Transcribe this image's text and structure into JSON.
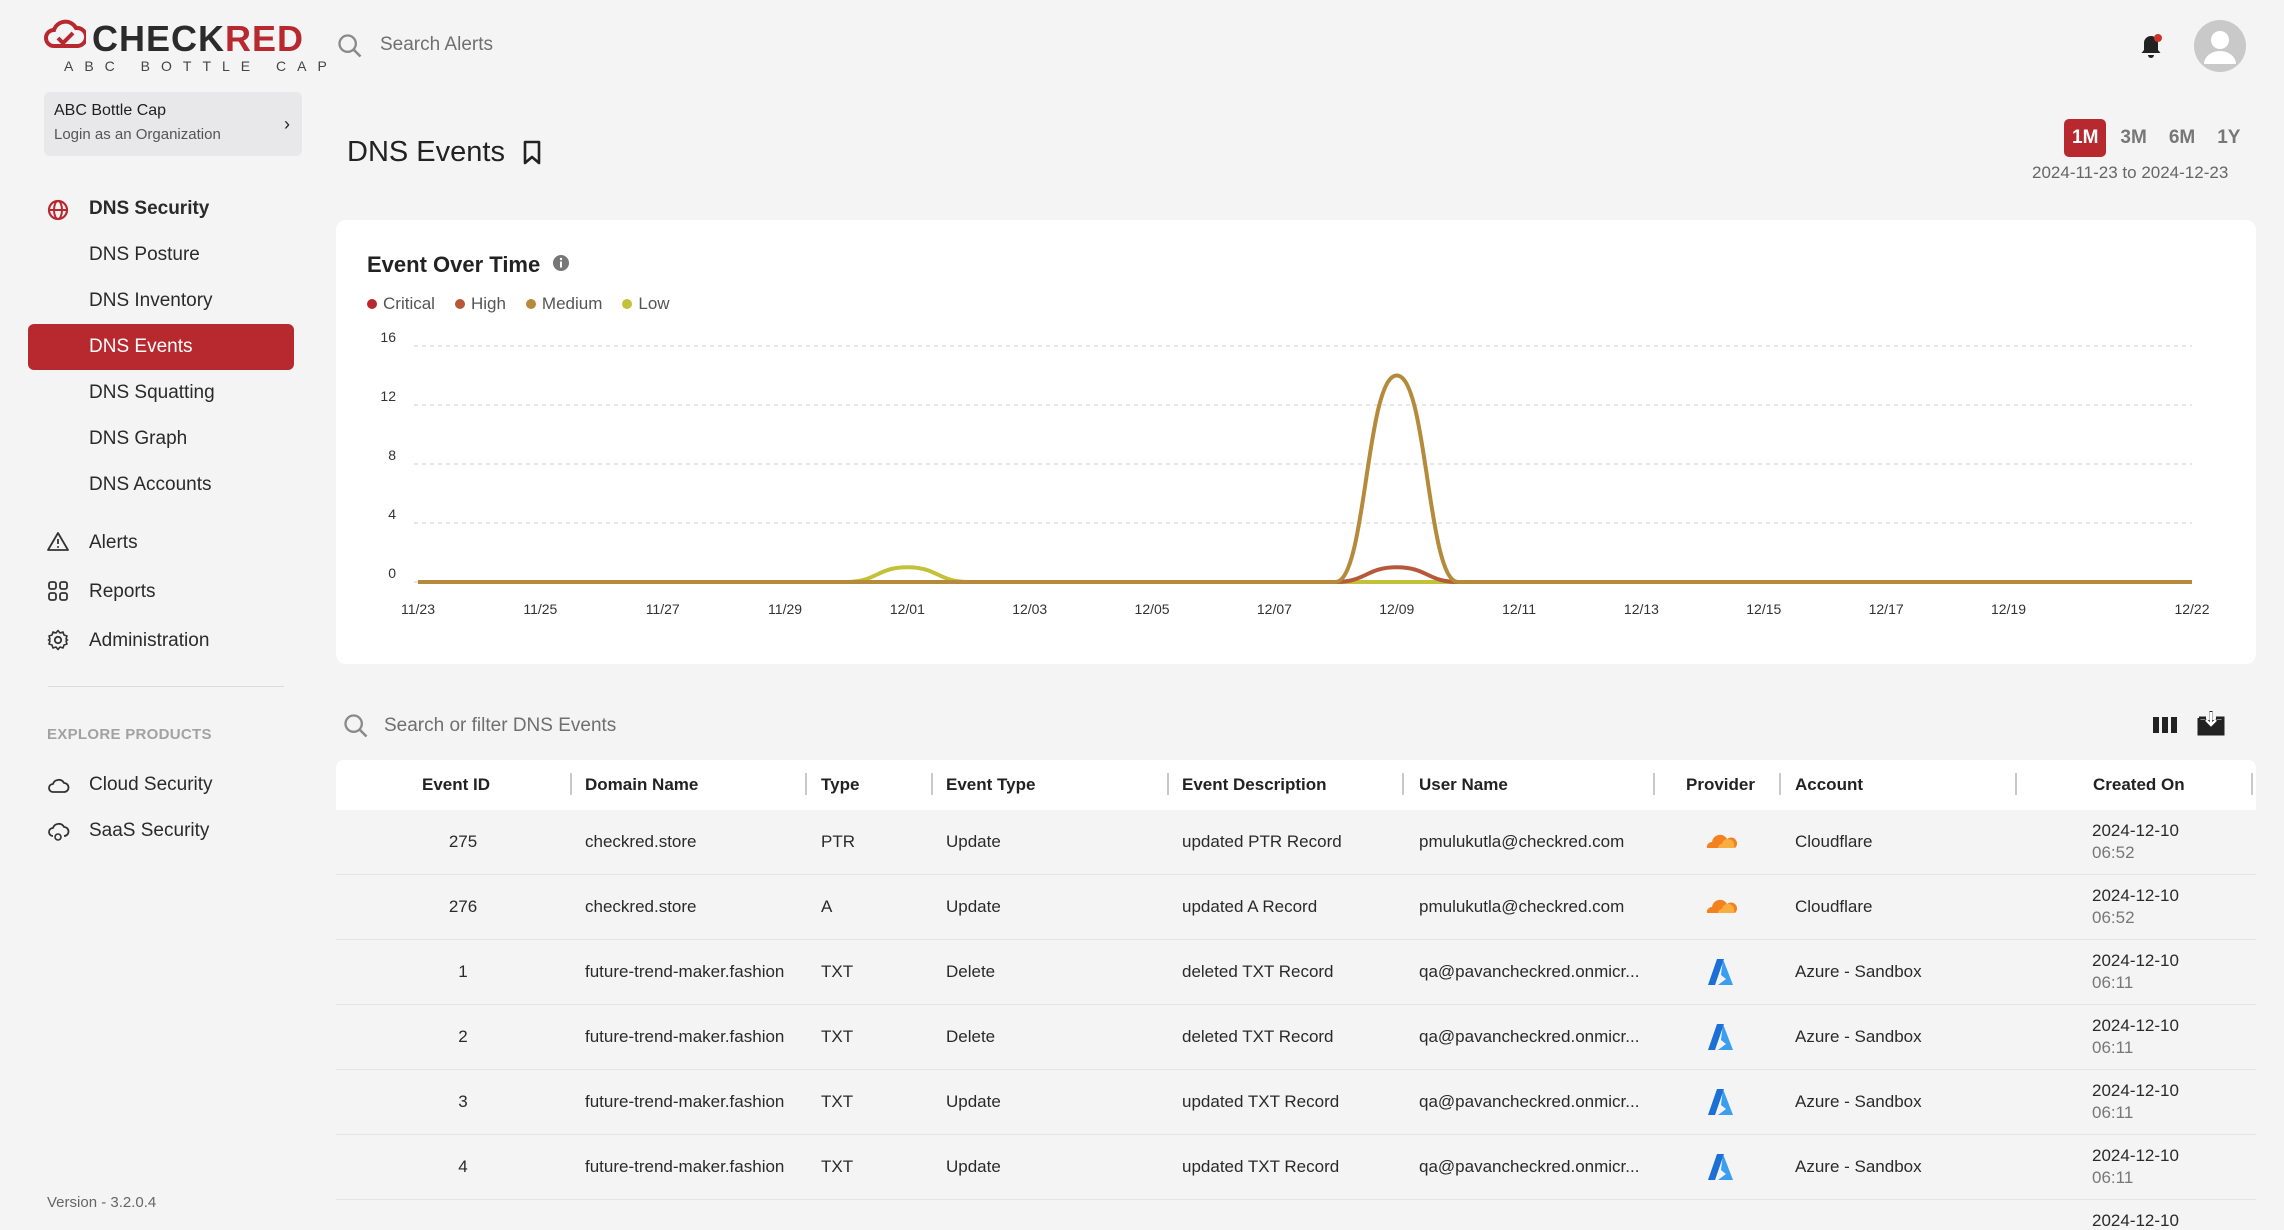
{
  "brand": {
    "name_dark": "CHECK",
    "name_red": "RED",
    "tagline": "ABC BOTTLE CAP"
  },
  "org": {
    "name": "ABC Bottle Cap",
    "action": "Login as an Organization"
  },
  "sidebar": {
    "section": {
      "label": "DNS Security",
      "icon": "globe-icon"
    },
    "sub_items": [
      {
        "label": "DNS Posture",
        "active": false
      },
      {
        "label": "DNS Inventory",
        "active": false
      },
      {
        "label": "DNS Events",
        "active": true
      },
      {
        "label": "DNS Squatting",
        "active": false
      },
      {
        "label": "DNS Graph",
        "active": false
      },
      {
        "label": "DNS Accounts",
        "active": false
      }
    ],
    "items": [
      {
        "label": "Alerts",
        "icon": "warning-triangle-icon"
      },
      {
        "label": "Reports",
        "icon": "grid-icon"
      },
      {
        "label": "Administration",
        "icon": "gear-icon"
      }
    ],
    "explore_label": "EXPLORE PRODUCTS",
    "products": [
      {
        "label": "Cloud Security",
        "icon": "cloud-icon"
      },
      {
        "label": "SaaS Security",
        "icon": "cloud-gear-icon"
      }
    ],
    "version": "Version - 3.2.0.4"
  },
  "topbar": {
    "search_placeholder": "Search Alerts"
  },
  "page": {
    "title": "DNS Events",
    "ranges": [
      "1M",
      "3M",
      "6M",
      "1Y"
    ],
    "active_range": "1M",
    "date_range": "2024-11-23 to 2024-12-23"
  },
  "chart_data": {
    "type": "line",
    "title": "Event Over Time",
    "x": [
      "11/23",
      "11/24",
      "11/25",
      "11/26",
      "11/27",
      "11/28",
      "11/29",
      "11/30",
      "12/01",
      "12/02",
      "12/03",
      "12/04",
      "12/05",
      "12/06",
      "12/07",
      "12/08",
      "12/09",
      "12/10",
      "12/11",
      "12/12",
      "12/13",
      "12/14",
      "12/15",
      "12/16",
      "12/17",
      "12/18",
      "12/19",
      "12/20",
      "12/21",
      "12/22"
    ],
    "x_ticks": [
      "11/23",
      "11/25",
      "11/27",
      "11/29",
      "12/01",
      "12/03",
      "12/05",
      "12/07",
      "12/09",
      "12/11",
      "12/13",
      "12/15",
      "12/17",
      "12/19",
      "12/22"
    ],
    "y_ticks": [
      0,
      4,
      8,
      12,
      16
    ],
    "ylim": [
      0,
      16
    ],
    "grid": true,
    "legend_position": "top-left",
    "series": [
      {
        "name": "Critical",
        "color": "#b8292f",
        "values": [
          0,
          0,
          0,
          0,
          0,
          0,
          0,
          0,
          0,
          0,
          0,
          0,
          0,
          0,
          0,
          0,
          0,
          0,
          0,
          0,
          0,
          0,
          0,
          0,
          0,
          0,
          0,
          0,
          0,
          0
        ]
      },
      {
        "name": "High",
        "color": "#b5593a",
        "values": [
          0,
          0,
          0,
          0,
          0,
          0,
          0,
          0,
          0,
          0,
          0,
          0,
          0,
          0,
          0,
          0,
          1,
          0,
          0,
          0,
          0,
          0,
          0,
          0,
          0,
          0,
          0,
          0,
          0,
          0
        ]
      },
      {
        "name": "Medium",
        "color": "#b58a3a",
        "values": [
          0,
          0,
          0,
          0,
          0,
          0,
          0,
          0,
          0,
          0,
          0,
          0,
          0,
          0,
          0,
          0,
          14,
          0,
          0,
          0,
          0,
          0,
          0,
          0,
          0,
          0,
          0,
          0,
          0,
          0
        ]
      },
      {
        "name": "Low",
        "color": "#c3c03a",
        "values": [
          0,
          0,
          0,
          0,
          0,
          0,
          0,
          0,
          1,
          0,
          0,
          0,
          0,
          0,
          0,
          0,
          0,
          0,
          0,
          0,
          0,
          0,
          0,
          0,
          0,
          0,
          0,
          0,
          0,
          0
        ]
      }
    ]
  },
  "table": {
    "search_placeholder": "Search or filter DNS Events",
    "columns": [
      "Event ID",
      "Domain Name",
      "Type",
      "Event Type",
      "Event Description",
      "User Name",
      "Provider",
      "Account",
      "Created On"
    ],
    "rows": [
      {
        "id": "275",
        "domain": "checkred.store",
        "type": "PTR",
        "event_type": "Update",
        "desc": "updated PTR Record",
        "user": "pmulukutla@checkred.com",
        "provider": "cloudflare",
        "account": "Cloudflare",
        "date": "2024-12-10",
        "time": "06:52"
      },
      {
        "id": "276",
        "domain": "checkred.store",
        "type": "A",
        "event_type": "Update",
        "desc": "updated A Record",
        "user": "pmulukutla@checkred.com",
        "provider": "cloudflare",
        "account": "Cloudflare",
        "date": "2024-12-10",
        "time": "06:52"
      },
      {
        "id": "1",
        "domain": "future-trend-maker.fashion",
        "type": "TXT",
        "event_type": "Delete",
        "desc": "deleted TXT Record",
        "user": "qa@pavancheckred.onmicr...",
        "provider": "azure",
        "account": "Azure - Sandbox",
        "date": "2024-12-10",
        "time": "06:11"
      },
      {
        "id": "2",
        "domain": "future-trend-maker.fashion",
        "type": "TXT",
        "event_type": "Delete",
        "desc": "deleted TXT Record",
        "user": "qa@pavancheckred.onmicr...",
        "provider": "azure",
        "account": "Azure - Sandbox",
        "date": "2024-12-10",
        "time": "06:11"
      },
      {
        "id": "3",
        "domain": "future-trend-maker.fashion",
        "type": "TXT",
        "event_type": "Update",
        "desc": "updated TXT Record",
        "user": "qa@pavancheckred.onmicr...",
        "provider": "azure",
        "account": "Azure - Sandbox",
        "date": "2024-12-10",
        "time": "06:11"
      },
      {
        "id": "4",
        "domain": "future-trend-maker.fashion",
        "type": "TXT",
        "event_type": "Update",
        "desc": "updated TXT Record",
        "user": "qa@pavancheckred.onmicr...",
        "provider": "azure",
        "account": "Azure - Sandbox",
        "date": "2024-12-10",
        "time": "06:11"
      },
      {
        "id": "",
        "domain": "",
        "type": "",
        "event_type": "",
        "desc": "",
        "user": "",
        "provider": "",
        "account": "",
        "date": "2024-12-10",
        "time": ""
      }
    ]
  }
}
